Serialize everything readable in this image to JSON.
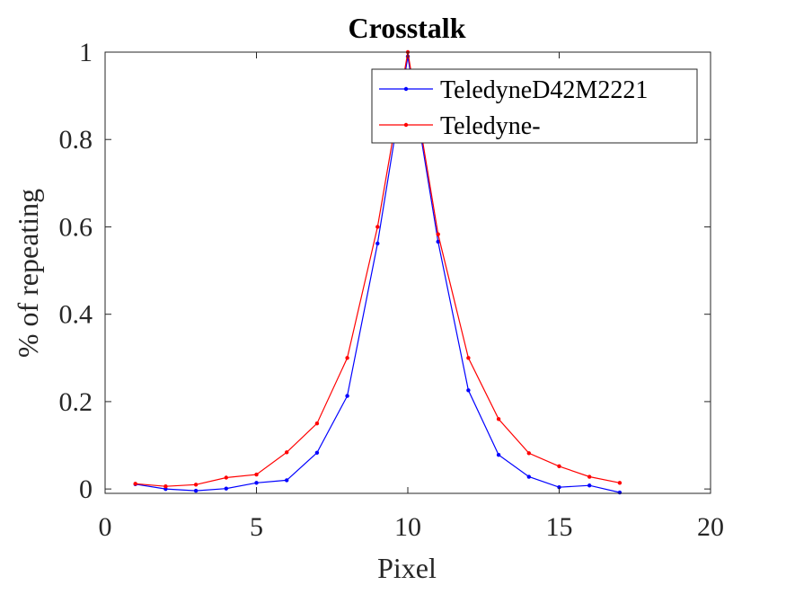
{
  "chart_data": {
    "type": "line",
    "title": "Crosstalk",
    "xlabel": "Pixel",
    "ylabel": "% of repeating",
    "xlim": [
      0,
      20
    ],
    "ylim": [
      -0.01,
      1.0
    ],
    "xticks": [
      0,
      5,
      10,
      15,
      20
    ],
    "yticks": [
      0,
      0.2,
      0.4,
      0.6,
      0.8,
      1
    ],
    "xtick_labels": [
      "0",
      "5",
      "10",
      "15",
      "20"
    ],
    "ytick_labels": [
      "0",
      "0.2",
      "0.4",
      "0.6",
      "0.8",
      "1"
    ],
    "grid": false,
    "legend_position": "top-right",
    "x": [
      1,
      2,
      3,
      4,
      5,
      6,
      7,
      8,
      9,
      10,
      11,
      12,
      13,
      14,
      15,
      16,
      17
    ],
    "series": [
      {
        "name": "TeledyneD42M2221",
        "color": "#0000ff",
        "values": [
          0.011,
          0.0,
          -0.004,
          0.001,
          0.014,
          0.02,
          0.083,
          0.213,
          0.562,
          0.99,
          0.566,
          0.226,
          0.078,
          0.028,
          0.004,
          0.008,
          -0.008
        ]
      },
      {
        "name": "Teledyne-",
        "color": "#ff0000",
        "values": [
          0.012,
          0.006,
          0.01,
          0.026,
          0.033,
          0.084,
          0.15,
          0.3,
          0.6,
          1.0,
          0.583,
          0.3,
          0.16,
          0.082,
          0.052,
          0.028,
          0.014
        ]
      }
    ]
  }
}
